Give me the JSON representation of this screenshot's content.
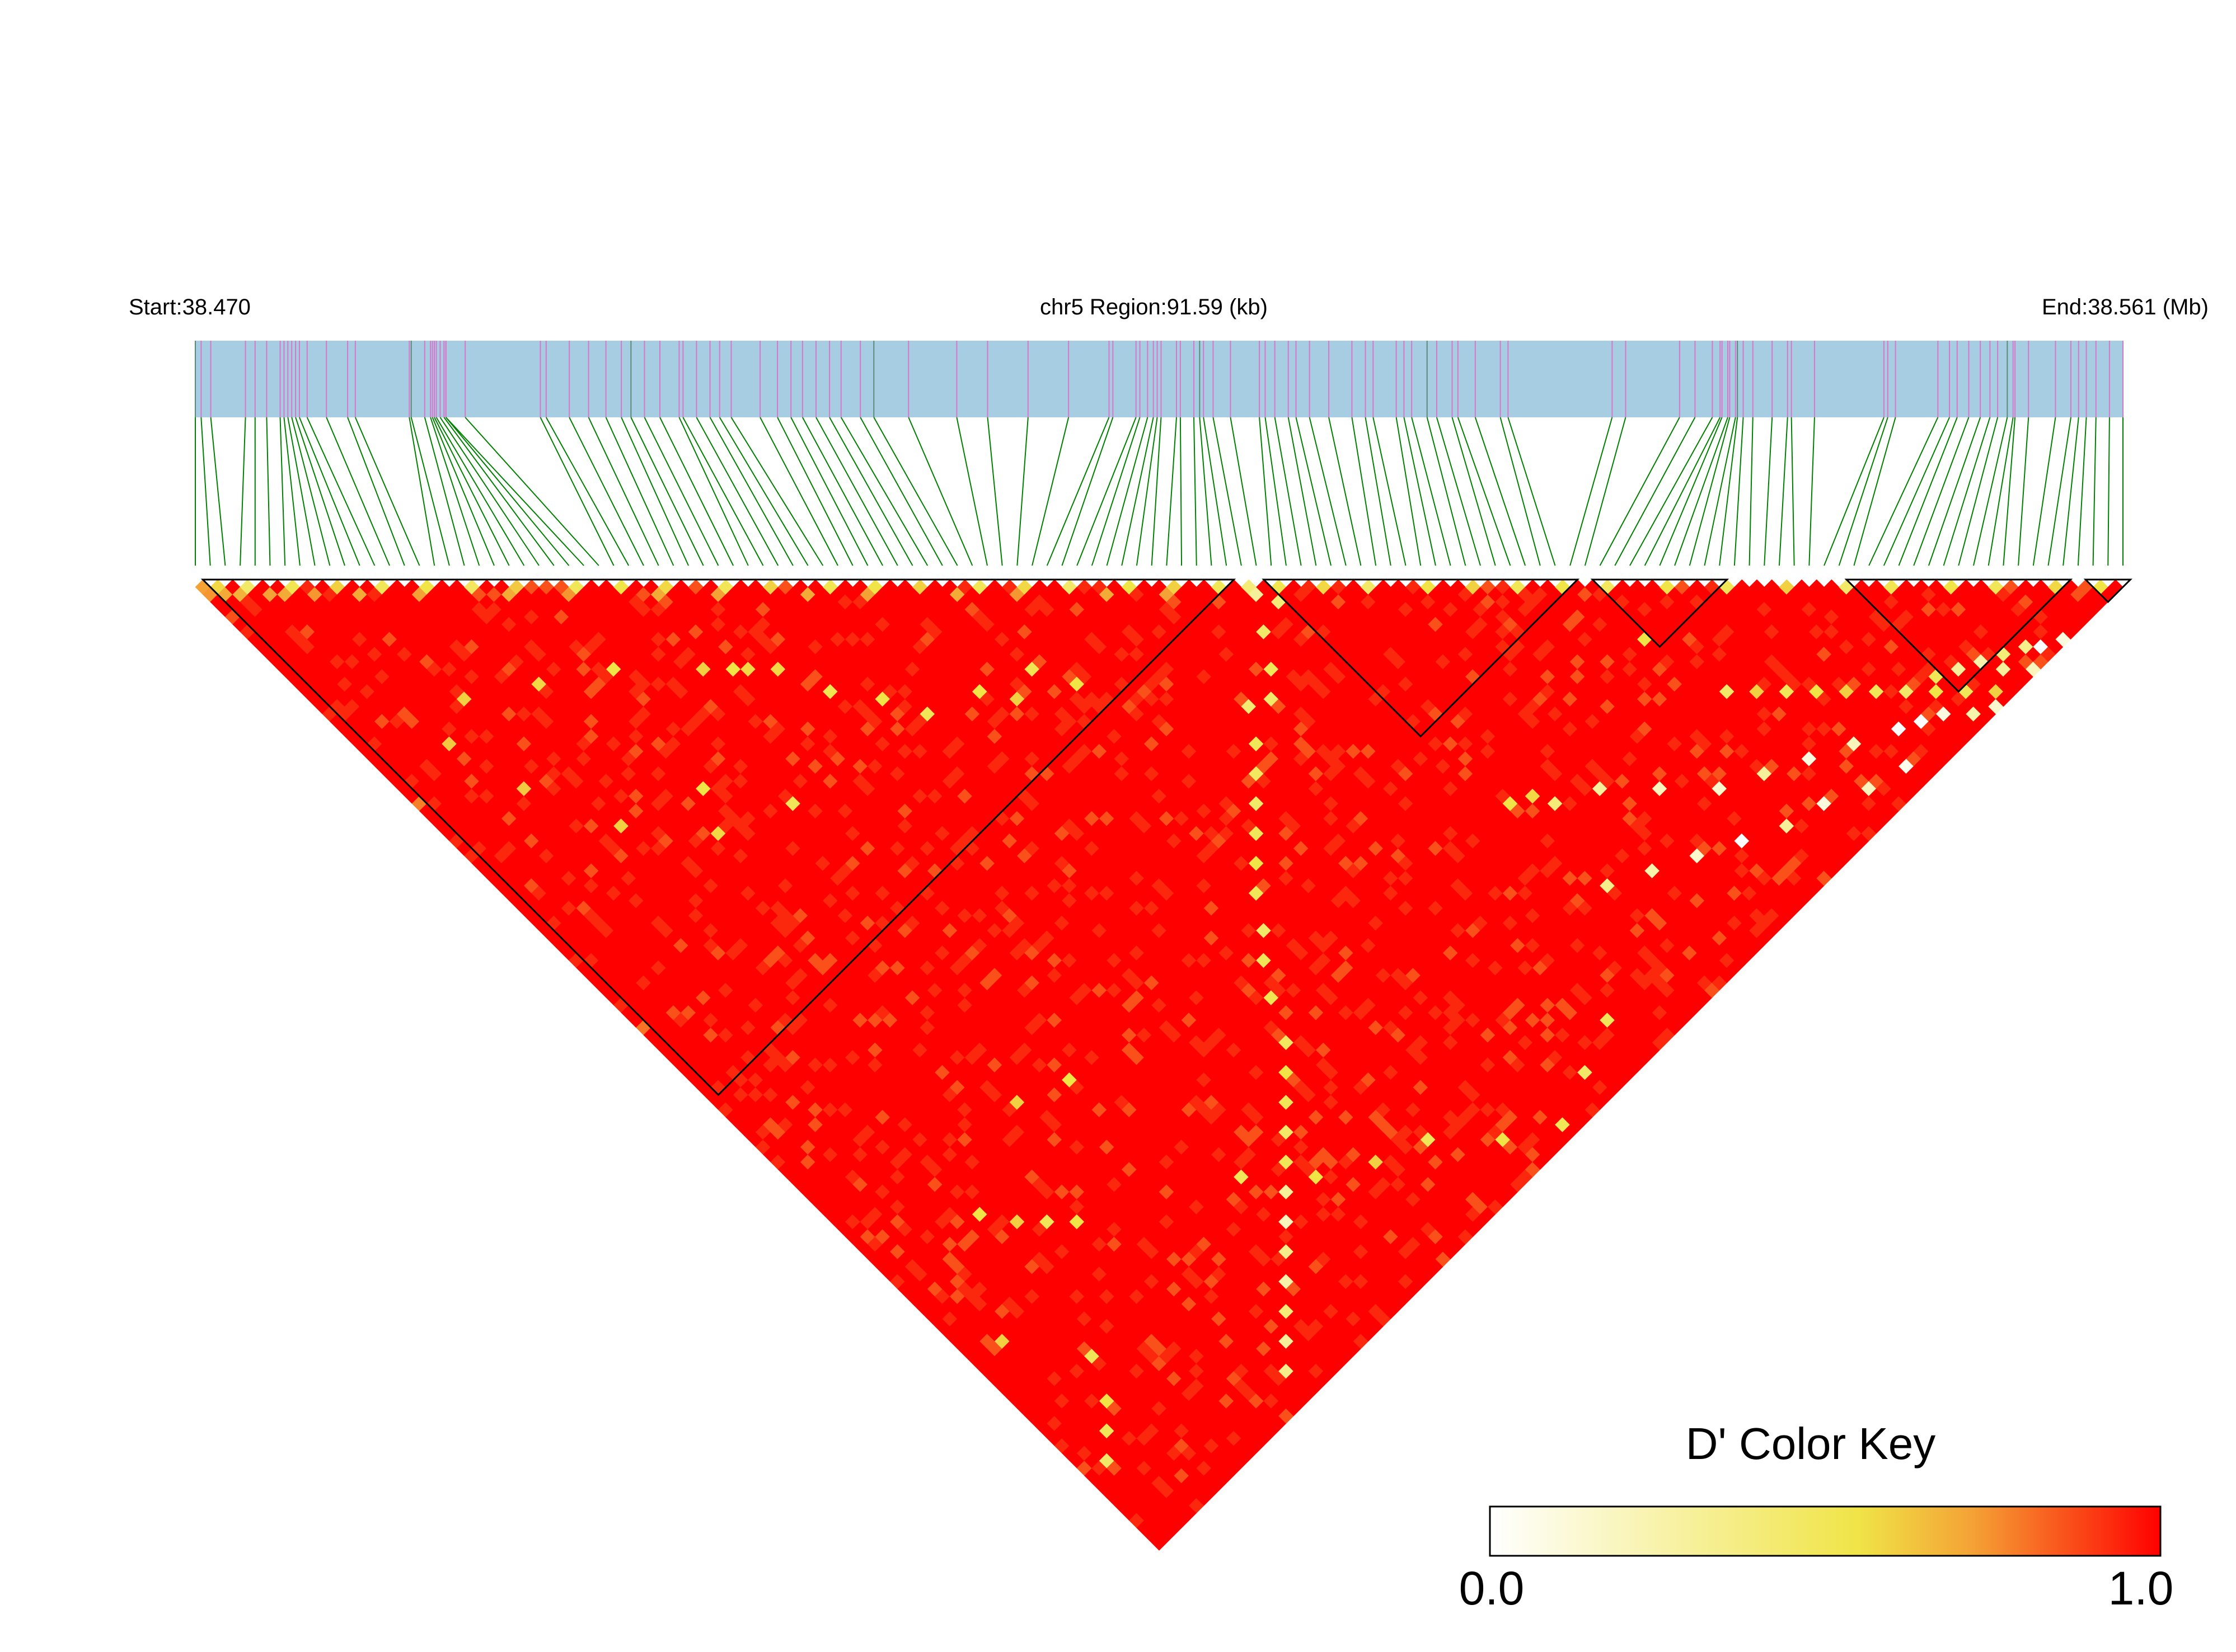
{
  "chart_data": {
    "type": "heatmap",
    "title": "",
    "header": {
      "start_label": "Start:38.470",
      "region_label": "chr5 Region:91.59 (kb)",
      "end_label": "End:38.561 (Mb)",
      "start_mb": 38.47,
      "end_mb": 38.561,
      "region_kb": 91.59
    },
    "n_snps": 130,
    "snp_fraction_positions": [
      0.0,
      0.003,
      0.008,
      0.026,
      0.031,
      0.037,
      0.044,
      0.046,
      0.048,
      0.05,
      0.052,
      0.054,
      0.058,
      0.068,
      0.079,
      0.083,
      0.111,
      0.112,
      0.119,
      0.122,
      0.123,
      0.124,
      0.125,
      0.127,
      0.129,
      0.13,
      0.13,
      0.14,
      0.179,
      0.182,
      0.194,
      0.204,
      0.213,
      0.221,
      0.226,
      0.233,
      0.241,
      0.251,
      0.253,
      0.26,
      0.267,
      0.272,
      0.278,
      0.293,
      0.302,
      0.309,
      0.315,
      0.322,
      0.329,
      0.335,
      0.345,
      0.352,
      0.37,
      0.395,
      0.411,
      0.432,
      0.453,
      0.474,
      0.476,
      0.488,
      0.49,
      0.494,
      0.497,
      0.499,
      0.501,
      0.509,
      0.511,
      0.518,
      0.521,
      0.523,
      0.528,
      0.537,
      0.552,
      0.555,
      0.56,
      0.567,
      0.571,
      0.578,
      0.588,
      0.6,
      0.607,
      0.611,
      0.623,
      0.627,
      0.631,
      0.639,
      0.644,
      0.652,
      0.655,
      0.664,
      0.677,
      0.681,
      0.735,
      0.742,
      0.77,
      0.778,
      0.787,
      0.791,
      0.792,
      0.795,
      0.796,
      0.799,
      0.8,
      0.803,
      0.808,
      0.818,
      0.826,
      0.828,
      0.84,
      0.876,
      0.878,
      0.882,
      0.904,
      0.91,
      0.914,
      0.92,
      0.926,
      0.931,
      0.935,
      0.94,
      0.943,
      0.944,
      0.951,
      0.965,
      0.973,
      0.977,
      0.981,
      0.986,
      0.993,
      1.0
    ],
    "blocks": [
      {
        "start": 1,
        "end": 69
      },
      {
        "start": 72,
        "end": 92
      },
      {
        "start": 94,
        "end": 102
      },
      {
        "start": 111,
        "end": 125
      },
      {
        "start": 127,
        "end": 129
      }
    ],
    "value_range": [
      0.0,
      1.0
    ],
    "cell_values": {
      "encoding": "D' = 1.0 except listed cells; cells are [i, j, value] with i<j SNP indices",
      "low_pairs": [
        [
          0,
          1,
          0.72
        ],
        [
          1,
          2,
          0.58
        ],
        [
          3,
          4,
          0.45
        ],
        [
          6,
          7,
          0.52
        ],
        [
          9,
          10,
          0.6
        ],
        [
          12,
          13,
          0.5
        ],
        [
          15,
          16,
          0.55
        ],
        [
          18,
          19,
          0.48
        ],
        [
          21,
          22,
          0.62
        ],
        [
          25,
          26,
          0.5
        ],
        [
          28,
          29,
          0.55
        ],
        [
          31,
          32,
          0.58
        ],
        [
          35,
          36,
          0.5
        ],
        [
          38,
          39,
          0.6
        ],
        [
          42,
          43,
          0.52
        ],
        [
          45,
          46,
          0.55
        ],
        [
          48,
          49,
          0.6
        ],
        [
          52,
          53,
          0.5
        ],
        [
          55,
          56,
          0.58
        ],
        [
          58,
          59,
          0.45
        ],
        [
          62,
          63,
          0.55
        ],
        [
          65,
          66,
          0.6
        ],
        [
          68,
          69,
          0.5
        ],
        [
          70,
          71,
          0.4
        ],
        [
          72,
          73,
          0.52
        ],
        [
          75,
          76,
          0.58
        ],
        [
          78,
          79,
          0.45
        ],
        [
          82,
          83,
          0.55
        ],
        [
          85,
          86,
          0.6
        ],
        [
          88,
          89,
          0.5
        ],
        [
          91,
          92,
          0.55
        ],
        [
          94,
          95,
          0.48
        ],
        [
          98,
          99,
          0.55
        ],
        [
          102,
          103,
          0.5
        ],
        [
          106,
          107,
          0.6
        ],
        [
          110,
          111,
          0.45
        ],
        [
          113,
          114,
          0.52
        ],
        [
          117,
          118,
          0.55
        ],
        [
          120,
          121,
          0.5
        ],
        [
          124,
          125,
          0.58
        ],
        [
          127,
          128,
          0.55
        ],
        [
          0,
          30,
          0.78
        ],
        [
          0,
          60,
          0.8
        ],
        [
          0,
          2,
          0.74
        ],
        [
          1,
          3,
          0.7
        ],
        [
          2,
          4,
          0.68
        ],
        [
          4,
          6,
          0.72
        ],
        [
          5,
          7,
          0.7
        ],
        [
          7,
          9,
          0.74
        ],
        [
          10,
          12,
          0.7
        ],
        [
          14,
          16,
          0.72
        ],
        [
          20,
          22,
          0.7
        ],
        [
          24,
          26,
          0.74
        ],
        [
          30,
          32,
          0.7
        ],
        [
          34,
          36,
          0.72
        ],
        [
          40,
          42,
          0.7
        ],
        [
          44,
          46,
          0.72
        ],
        [
          50,
          52,
          0.7
        ],
        [
          54,
          56,
          0.74
        ],
        [
          60,
          62,
          0.7
        ],
        [
          64,
          66,
          0.72
        ],
        [
          30,
          42,
          0.55
        ],
        [
          31,
          43,
          0.58
        ],
        [
          35,
          50,
          0.52
        ],
        [
          40,
          58,
          0.5
        ],
        [
          45,
          60,
          0.55
        ],
        [
          50,
          62,
          0.52
        ],
        [
          20,
          48,
          0.55
        ],
        [
          25,
          55,
          0.5
        ],
        [
          33,
          45,
          0.58
        ],
        [
          38,
          54,
          0.55
        ],
        [
          47,
          63,
          0.6
        ],
        [
          52,
          66,
          0.55
        ],
        [
          28,
          40,
          0.6
        ],
        [
          22,
          34,
          0.55
        ],
        [
          16,
          30,
          0.58
        ],
        [
          10,
          26,
          0.6
        ],
        [
          6,
          28,
          0.62
        ],
        [
          12,
          45,
          0.6
        ],
        [
          18,
          52,
          0.58
        ],
        [
          8,
          36,
          0.62
        ],
        [
          70,
          72,
          0.3
        ],
        [
          71,
          74,
          0.4
        ],
        [
          68,
          75,
          0.45
        ],
        [
          66,
          78,
          0.5
        ],
        [
          64,
          80,
          0.45
        ],
        [
          60,
          82,
          0.5
        ],
        [
          62,
          79,
          0.42
        ],
        [
          58,
          84,
          0.48
        ],
        [
          56,
          86,
          0.45
        ],
        [
          54,
          88,
          0.5
        ],
        [
          52,
          90,
          0.55
        ],
        [
          50,
          92,
          0.5
        ],
        [
          48,
          95,
          0.45
        ],
        [
          46,
          97,
          0.5
        ],
        [
          44,
          100,
          0.52
        ],
        [
          42,
          104,
          0.48
        ],
        [
          40,
          106,
          0.55
        ],
        [
          38,
          108,
          0.5
        ],
        [
          36,
          110,
          0.45
        ],
        [
          34,
          112,
          0.5
        ],
        [
          32,
          114,
          0.3
        ],
        [
          30,
          116,
          0.2
        ],
        [
          28,
          118,
          0.35
        ],
        [
          26,
          120,
          0.25
        ],
        [
          24,
          122,
          0.4
        ],
        [
          22,
          124,
          0.3
        ],
        [
          20,
          126,
          0.35
        ],
        [
          73,
          103,
          0.55
        ],
        [
          75,
          104,
          0.58
        ],
        [
          76,
          106,
          0.4
        ],
        [
          80,
          108,
          0.3
        ],
        [
          84,
          112,
          0.2
        ],
        [
          88,
          116,
          0.15
        ],
        [
          92,
          118,
          0.3
        ],
        [
          96,
          120,
          0.1
        ],
        [
          100,
          122,
          0.2
        ],
        [
          104,
          124,
          0.0
        ],
        [
          108,
          126,
          0.1
        ],
        [
          110,
          128,
          0.25
        ],
        [
          112,
          129,
          0.15
        ],
        [
          106,
          125,
          0.0
        ],
        [
          102,
          127,
          0.05
        ],
        [
          98,
          126,
          0.2
        ],
        [
          94,
          124,
          0.1
        ],
        [
          90,
          123,
          0.3
        ],
        [
          86,
          121,
          0.0
        ],
        [
          82,
          119,
          0.15
        ],
        [
          78,
          117,
          0.25
        ],
        [
          74,
          115,
          0.35
        ],
        [
          93,
          101,
          0.55
        ],
        [
          95,
          110,
          0.45
        ],
        [
          97,
          112,
          0.6
        ],
        [
          99,
          114,
          0.5
        ],
        [
          101,
          116,
          0.55
        ],
        [
          103,
          118,
          0.6
        ],
        [
          105,
          120,
          0.5
        ],
        [
          107,
          122,
          0.45
        ],
        [
          109,
          124,
          0.55
        ],
        [
          111,
          126,
          0.5
        ],
        [
          113,
          128,
          0.6
        ],
        [
          115,
          127,
          0.3
        ],
        [
          117,
          129,
          0.2
        ],
        [
          119,
          128,
          0.0
        ],
        [
          121,
          129,
          0.1
        ],
        [
          118,
          127,
          0.35
        ],
        [
          116,
          126,
          0.4
        ],
        [
          114,
          125,
          0.25
        ],
        [
          112,
          124,
          0.3
        ],
        [
          110,
          123,
          0.5
        ],
        [
          10,
          95,
          0.55
        ],
        [
          12,
          98,
          0.6
        ],
        [
          14,
          100,
          0.5
        ],
        [
          16,
          102,
          0.55
        ],
        [
          30,
          110,
          0.5
        ],
        [
          35,
          115,
          0.55
        ],
        [
          40,
          118,
          0.6
        ],
        [
          45,
          120,
          0.5
        ],
        [
          50,
          125,
          0.55
        ],
        [
          55,
          128,
          0.5
        ],
        [
          60,
          126,
          0.45
        ],
        [
          65,
          124,
          0.5
        ],
        [
          20,
          90,
          0.6
        ],
        [
          25,
          92,
          0.55
        ],
        [
          2,
          120,
          0.45
        ],
        [
          4,
          118,
          0.5
        ],
        [
          6,
          116,
          0.55
        ],
        [
          8,
          112,
          0.5
        ],
        [
          3,
          105,
          0.6
        ]
      ]
    },
    "color_key": {
      "title": "D' Color Key",
      "min_label": "0.0",
      "max_label": "1.0",
      "stops": [
        "#ffffff",
        "#f0e447",
        "#f4a235",
        "#ff0000"
      ]
    },
    "colors": {
      "gene_track": "#a7cde2",
      "snp_tick": "#d877c9",
      "snp_tick_alt": "#5c8a7a",
      "connector": "#008000",
      "block_outline": "#000000"
    }
  }
}
